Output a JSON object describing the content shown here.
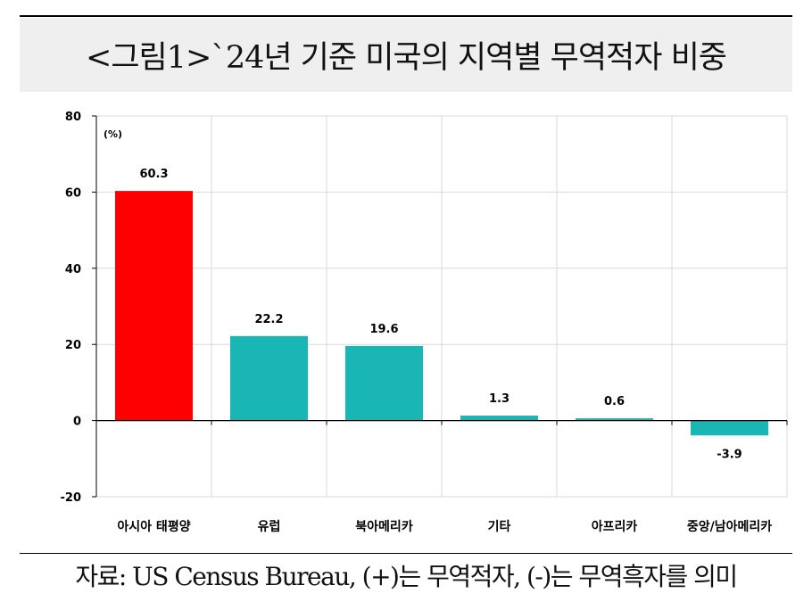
{
  "title": "<그림1>`24년 기준 미국의 지역별 무역적자 비중",
  "source": "자료: US Census Bureau, (+)는 무역적자, (-)는 무역흑자를 의미",
  "chart_data": {
    "type": "bar",
    "unit_label": "(%)",
    "categories": [
      "아시아 태평양",
      "유럽",
      "북아메리카",
      "기타",
      "아프리카",
      "중앙/남아메리카"
    ],
    "values": [
      60.3,
      22.2,
      19.6,
      1.3,
      0.6,
      -3.9
    ],
    "data_labels": [
      "60.3",
      "22.2",
      "19.6",
      "1.3",
      "0.6",
      "-3.9"
    ],
    "ylim": [
      -20,
      80
    ],
    "yticks": [
      "80",
      "60",
      "40",
      "20",
      "0",
      "-20"
    ],
    "ytick_values": [
      80,
      60,
      40,
      20,
      0,
      -20
    ],
    "grid": true,
    "colors": [
      "#ff0000",
      "#1ab5b5",
      "#1ab5b5",
      "#1ab5b5",
      "#1ab5b5",
      "#1ab5b5"
    ],
    "grid_color": "#d9d9d9"
  }
}
